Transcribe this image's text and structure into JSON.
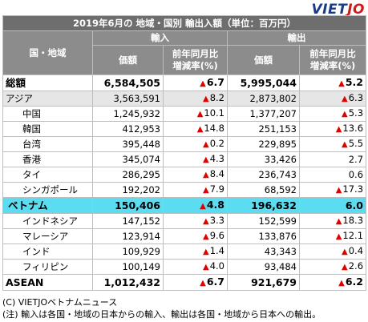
{
  "logo": {
    "part1": "VIET",
    "part2": "JO"
  },
  "title": "2019年6月の 地域・国別 輸出入額（単位：百万円）",
  "headers": {
    "region": "国・地域",
    "import": "輸入",
    "export": "輸出",
    "value": "価額",
    "yoy_line1": "前年同月比",
    "yoy_line2": "増減率(%)"
  },
  "rows": [
    {
      "kind": "total",
      "name": "総額",
      "imp": "6,584,505",
      "imp_pct": "6.7",
      "imp_up": true,
      "exp": "5,995,044",
      "exp_pct": "5.2",
      "exp_up": true
    },
    {
      "kind": "region",
      "name": "アジア",
      "imp": "3,563,591",
      "imp_pct": "8.2",
      "imp_up": true,
      "exp": "2,873,802",
      "exp_pct": "6.3",
      "exp_up": true
    },
    {
      "kind": "sub",
      "name": "中国",
      "imp": "1,245,932",
      "imp_pct": "10.1",
      "imp_up": true,
      "exp": "1,377,207",
      "exp_pct": "5.3",
      "exp_up": true
    },
    {
      "kind": "sub",
      "name": "韓国",
      "imp": "412,953",
      "imp_pct": "14.8",
      "imp_up": true,
      "exp": "251,153",
      "exp_pct": "13.6",
      "exp_up": true
    },
    {
      "kind": "sub",
      "name": "台湾",
      "imp": "395,448",
      "imp_pct": "0.2",
      "imp_up": true,
      "exp": "229,895",
      "exp_pct": "5.5",
      "exp_up": true
    },
    {
      "kind": "sub",
      "name": "香港",
      "imp": "345,074",
      "imp_pct": "4.3",
      "imp_up": true,
      "exp": "33,426",
      "exp_pct": "2.7",
      "exp_up": false
    },
    {
      "kind": "sub",
      "name": "タイ",
      "imp": "286,295",
      "imp_pct": "8.4",
      "imp_up": true,
      "exp": "236,743",
      "exp_pct": "0.6",
      "exp_up": false
    },
    {
      "kind": "sub",
      "name": "シンガポール",
      "imp": "192,202",
      "imp_pct": "7.9",
      "imp_up": true,
      "exp": "68,592",
      "exp_pct": "17.3",
      "exp_up": true
    },
    {
      "kind": "vn",
      "name": "ベトナム",
      "imp": "150,406",
      "imp_pct": "4.8",
      "imp_up": true,
      "exp": "196,632",
      "exp_pct": "6.0",
      "exp_up": false
    },
    {
      "kind": "sub",
      "name": "インドネシア",
      "imp": "147,152",
      "imp_pct": "3.3",
      "imp_up": true,
      "exp": "152,599",
      "exp_pct": "18.3",
      "exp_up": true
    },
    {
      "kind": "sub",
      "name": "マレーシア",
      "imp": "123,914",
      "imp_pct": "9.6",
      "imp_up": true,
      "exp": "133,876",
      "exp_pct": "12.1",
      "exp_up": true
    },
    {
      "kind": "sub",
      "name": "インド",
      "imp": "109,929",
      "imp_pct": "1.4",
      "imp_up": true,
      "exp": "43,343",
      "exp_pct": "0.4",
      "exp_up": true
    },
    {
      "kind": "sub",
      "name": "フィリピン",
      "imp": "100,149",
      "imp_pct": "4.0",
      "imp_up": true,
      "exp": "93,484",
      "exp_pct": "2.6",
      "exp_up": true
    },
    {
      "kind": "asean",
      "name": "ASEAN",
      "imp": "1,012,432",
      "imp_pct": "6.7",
      "imp_up": true,
      "exp": "921,679",
      "exp_pct": "6.2",
      "exp_up": true
    }
  ],
  "notes": {
    "source": "(C) VIETJOベトナムニュース",
    "footnote": "(注) 輸入は各国・地域の日本からの輸入、輸出は各国・地域から日本への輸出。"
  },
  "colors": {
    "highlight_row": "#5cdcf0",
    "triangle": "#e00000",
    "header": "#8c8c8c"
  }
}
